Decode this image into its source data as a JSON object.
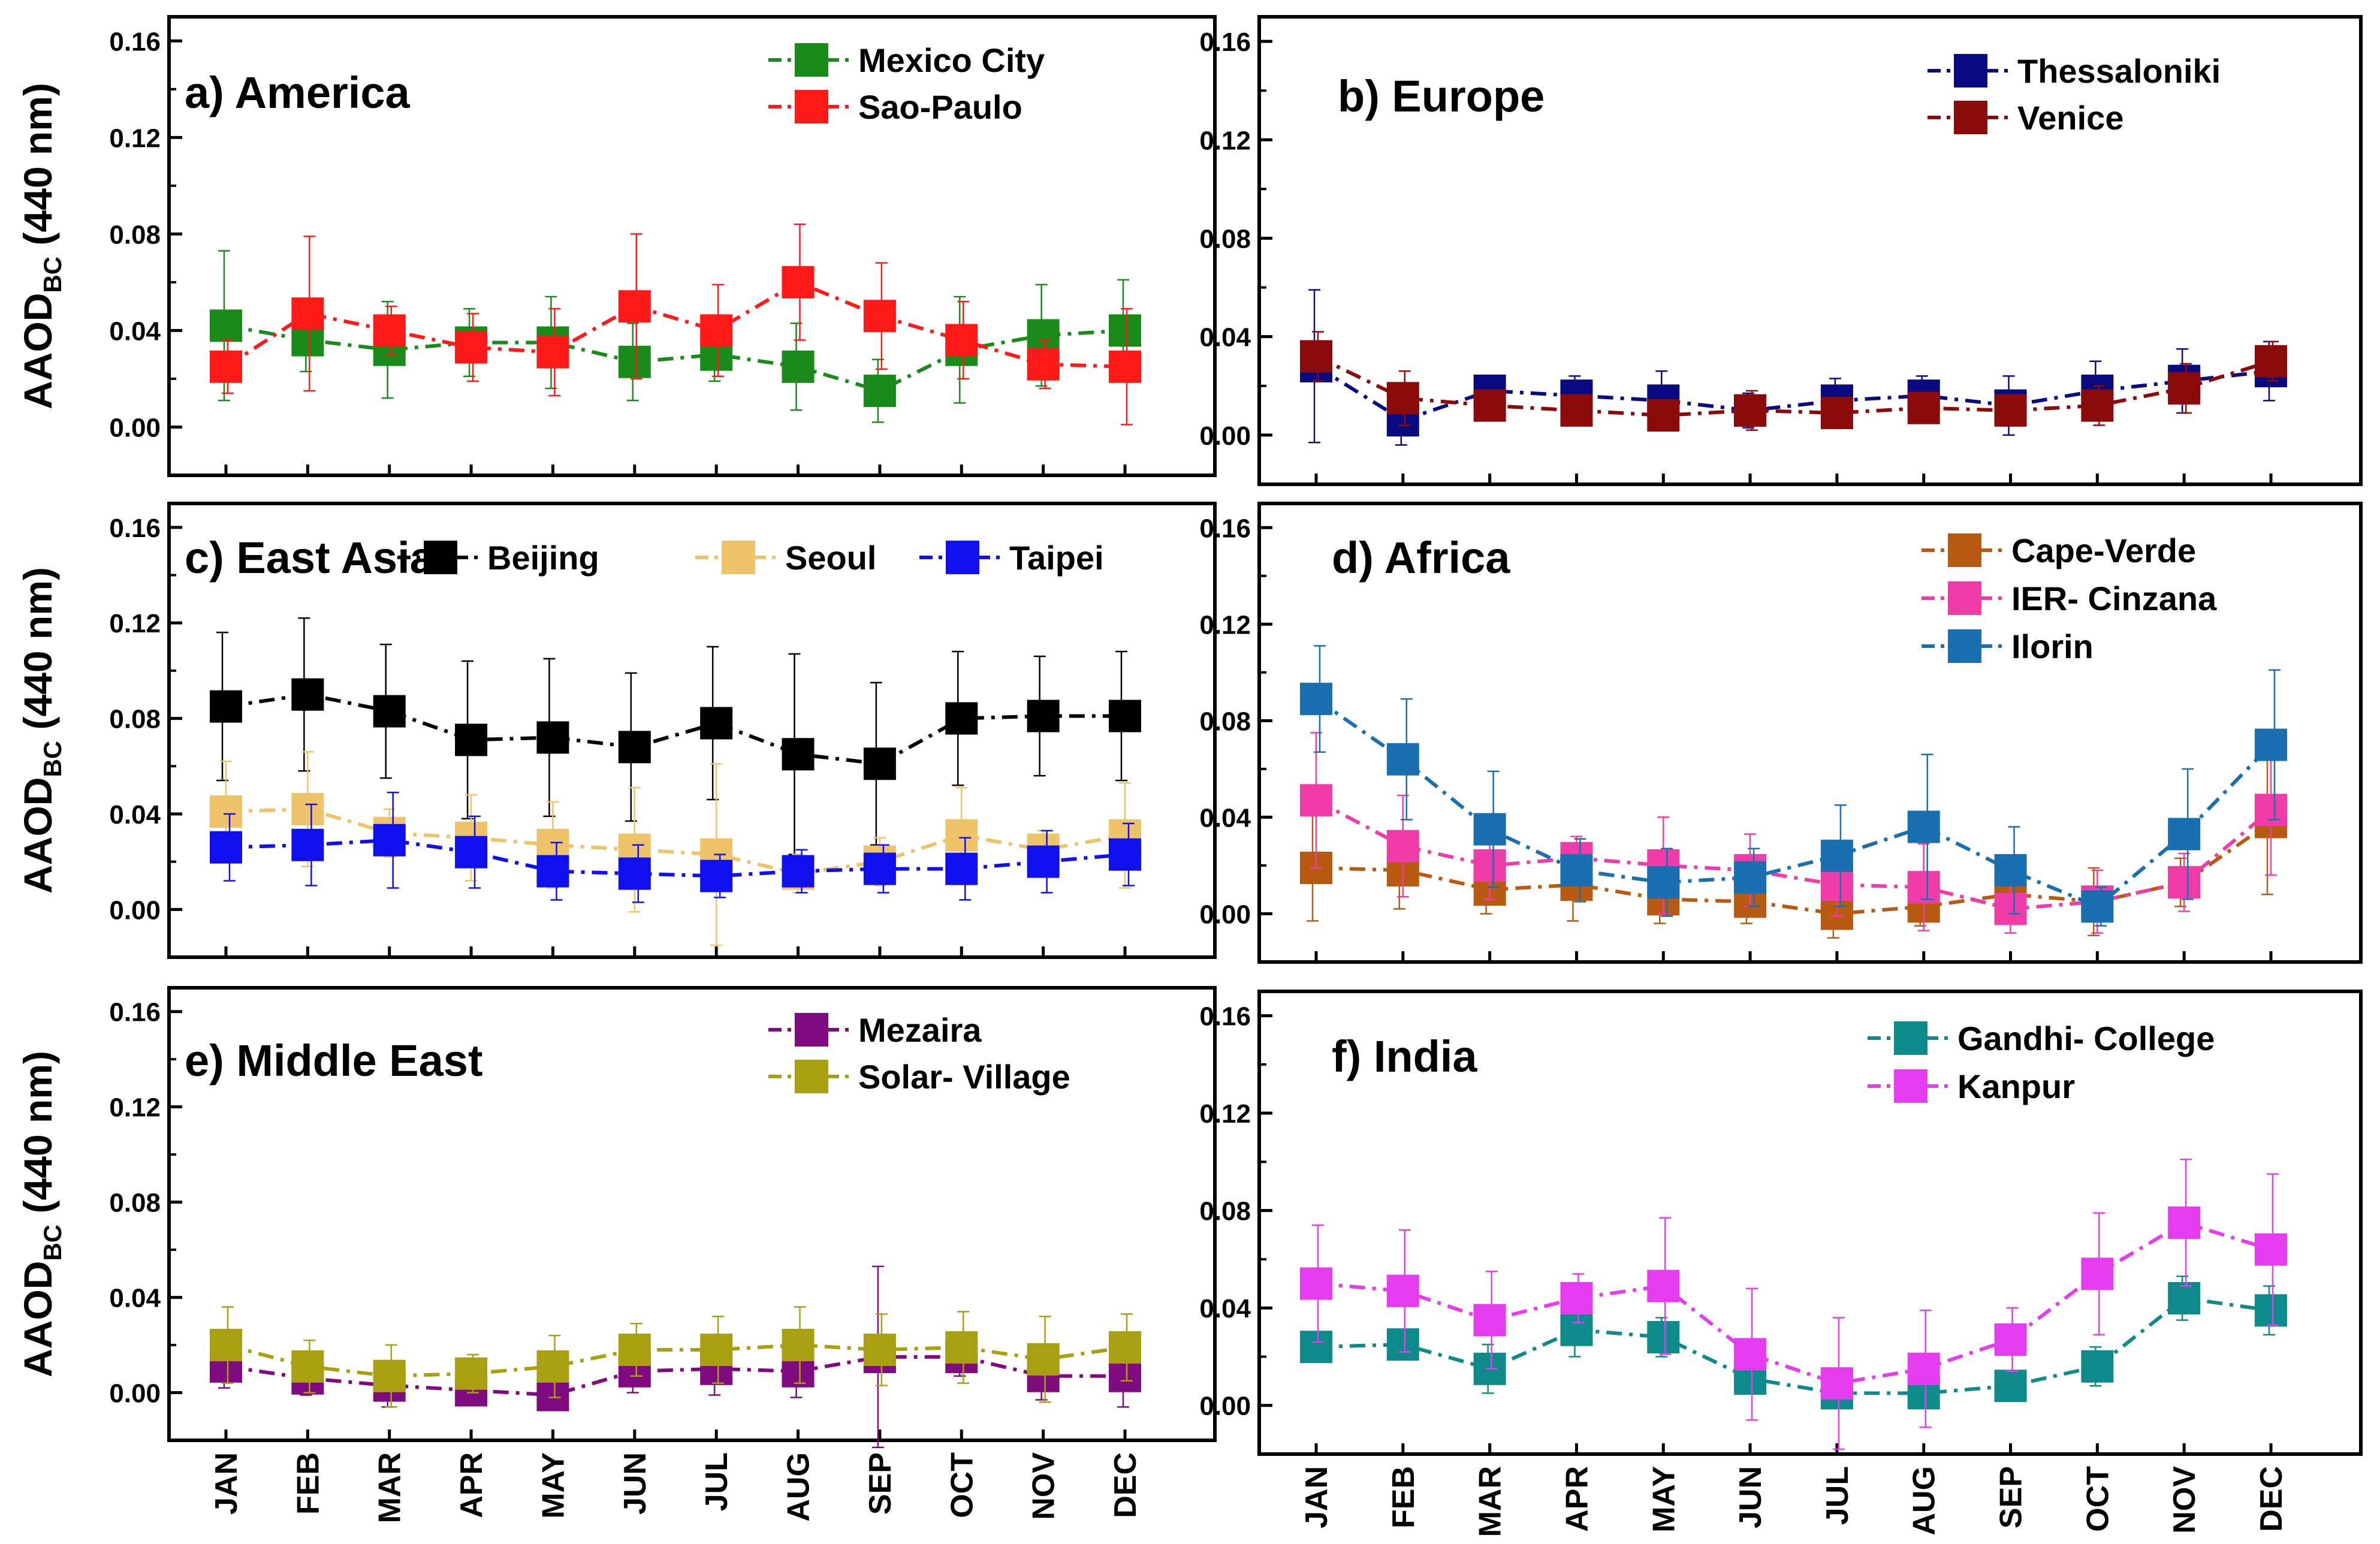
{
  "figure": {
    "ylabel": {
      "main": "AAOD",
      "sub": "BC",
      "rest": " (440 nm)"
    },
    "months": [
      "JAN",
      "FEB",
      "MAR",
      "APR",
      "MAY",
      "JUN",
      "JUL",
      "AUG",
      "SEP",
      "OCT",
      "NOV",
      "DEC"
    ],
    "yticks": [
      {
        "value": 0.0,
        "label": "0.00"
      },
      {
        "value": 0.04,
        "label": "0.04"
      },
      {
        "value": 0.08,
        "label": "0.08"
      },
      {
        "value": 0.12,
        "label": "0.12"
      },
      {
        "value": 0.16,
        "label": "0.16"
      }
    ]
  },
  "chart_data": [
    {
      "type": "line",
      "id": "america",
      "title": "a) America",
      "ylabel": "AAODBC (440 nm)",
      "ylim": [
        -0.02,
        0.17
      ],
      "legend_position": "top-right",
      "x": [
        "JAN",
        "FEB",
        "MAR",
        "APR",
        "MAY",
        "JUN",
        "JUL",
        "AUG",
        "SEP",
        "OCT",
        "NOV",
        "DEC"
      ],
      "series": [
        {
          "name": "Mexico City",
          "color": "#1a8a1a",
          "values": [
            0.042,
            0.036,
            0.032,
            0.035,
            0.035,
            0.027,
            0.03,
            0.025,
            0.015,
            0.032,
            0.038,
            0.04
          ],
          "err": [
            0.031,
            0.013,
            0.02,
            0.014,
            0.019,
            0.016,
            0.011,
            0.018,
            0.013,
            0.022,
            0.021,
            0.021
          ]
        },
        {
          "name": "Sao-Paulo",
          "color": "#ff1a1a",
          "values": [
            0.025,
            0.047,
            0.04,
            0.033,
            0.031,
            0.05,
            0.04,
            0.06,
            0.046,
            0.036,
            0.026,
            0.025
          ],
          "err": [
            0.011,
            0.032,
            0.01,
            0.014,
            0.018,
            0.03,
            0.019,
            0.024,
            0.022,
            0.016,
            0.01,
            0.024
          ]
        }
      ]
    },
    {
      "type": "line",
      "id": "europe",
      "title": "b) Europe",
      "ylabel": "",
      "ylim": [
        -0.02,
        0.17
      ],
      "legend_position": "top-right",
      "x": [
        "JAN",
        "FEB",
        "MAR",
        "APR",
        "MAY",
        "JUN",
        "JUL",
        "AUG",
        "SEP",
        "OCT",
        "NOV",
        "DEC"
      ],
      "series": [
        {
          "name": "Thessaloniki",
          "color": "#0a0a80",
          "values": [
            0.028,
            0.006,
            0.018,
            0.016,
            0.014,
            0.01,
            0.014,
            0.016,
            0.012,
            0.018,
            0.022,
            0.026
          ],
          "err": [
            0.031,
            0.01,
            0.005,
            0.008,
            0.012,
            0.007,
            0.009,
            0.008,
            0.012,
            0.012,
            0.013,
            0.012
          ]
        },
        {
          "name": "Venice",
          "color": "#8b0a0a",
          "values": [
            0.032,
            0.015,
            0.012,
            0.01,
            0.008,
            0.01,
            0.009,
            0.011,
            0.01,
            0.012,
            0.019,
            0.03
          ],
          "err": [
            0.01,
            0.011,
            0.006,
            0.005,
            0.006,
            0.008,
            0.005,
            0.006,
            0.006,
            0.008,
            0.01,
            0.008
          ]
        }
      ]
    },
    {
      "type": "line",
      "id": "east-asia",
      "title": "c) East Asia",
      "ylabel": "AAODBC (440 nm)",
      "ylim": [
        -0.02,
        0.17
      ],
      "legend_position": "top",
      "x": [
        "JAN",
        "FEB",
        "MAR",
        "APR",
        "MAY",
        "JUN",
        "JUL",
        "AUG",
        "SEP",
        "OCT",
        "NOV",
        "DEC"
      ],
      "series": [
        {
          "name": "Beijing",
          "color": "#000000",
          "values": [
            0.085,
            0.09,
            0.083,
            0.071,
            0.072,
            0.068,
            0.078,
            0.065,
            0.061,
            0.08,
            0.081,
            0.081
          ],
          "err": [
            0.031,
            0.032,
            0.028,
            0.033,
            0.033,
            0.031,
            0.032,
            0.042,
            0.034,
            0.028,
            0.025,
            0.027
          ]
        },
        {
          "name": "Seoul",
          "color": "#efc36a",
          "values": [
            0.041,
            0.042,
            0.032,
            0.03,
            0.027,
            0.025,
            0.023,
            0.015,
            0.02,
            0.031,
            0.025,
            0.031
          ],
          "err": [
            0.021,
            0.024,
            0.01,
            0.018,
            0.018,
            0.026,
            0.038,
            0.008,
            0.01,
            0.02,
            0.008,
            0.022
          ]
        },
        {
          "name": "Taipei",
          "color": "#1010ee",
          "values": [
            0.026,
            0.027,
            0.029,
            0.024,
            0.016,
            0.015,
            0.014,
            0.016,
            0.017,
            0.017,
            0.02,
            0.023
          ],
          "err": [
            0.014,
            0.017,
            0.02,
            0.015,
            0.012,
            0.012,
            0.009,
            0.009,
            0.01,
            0.013,
            0.013,
            0.013
          ]
        }
      ]
    },
    {
      "type": "line",
      "id": "africa",
      "title": "d) Africa",
      "ylabel": "",
      "ylim": [
        -0.02,
        0.17
      ],
      "legend_position": "top-right",
      "x": [
        "JAN",
        "FEB",
        "MAR",
        "APR",
        "MAY",
        "JUN",
        "JUL",
        "AUG",
        "SEP",
        "OCT",
        "NOV",
        "DEC"
      ],
      "series": [
        {
          "name": "Cape-Verde",
          "color": "#b85a12",
          "values": [
            0.019,
            0.018,
            0.01,
            0.012,
            0.006,
            0.005,
            0.0,
            0.003,
            0.008,
            0.005,
            0.013,
            0.038
          ],
          "err": [
            0.022,
            0.016,
            0.01,
            0.015,
            0.01,
            0.009,
            0.01,
            0.008,
            0.009,
            0.014,
            0.01,
            0.03
          ]
        },
        {
          "name": "IER- Cinzana",
          "color": "#f03ca8",
          "values": [
            0.047,
            0.028,
            0.02,
            0.023,
            0.02,
            0.018,
            0.012,
            0.011,
            0.002,
            0.005,
            0.013,
            0.043
          ],
          "err": [
            0.028,
            0.021,
            0.014,
            0.009,
            0.02,
            0.015,
            0.013,
            0.018,
            0.01,
            0.013,
            0.012,
            0.027
          ]
        },
        {
          "name": "Ilorin",
          "color": "#1a6fb0",
          "values": [
            0.089,
            0.064,
            0.035,
            0.018,
            0.013,
            0.015,
            0.024,
            0.036,
            0.018,
            0.003,
            0.033,
            0.07
          ],
          "err": [
            0.022,
            0.025,
            0.024,
            0.013,
            0.014,
            0.012,
            0.021,
            0.03,
            0.018,
            0.008,
            0.027,
            0.031
          ]
        }
      ]
    },
    {
      "type": "line",
      "id": "middle-east",
      "title": "e) Middle East",
      "ylabel": "AAODBC (440 nm)",
      "ylim": [
        -0.02,
        0.17
      ],
      "legend_position": "top-right",
      "x": [
        "JAN",
        "FEB",
        "MAR",
        "APR",
        "MAY",
        "JUN",
        "JUL",
        "AUG",
        "SEP",
        "OCT",
        "NOV",
        "DEC"
      ],
      "series": [
        {
          "name": "Mezaira",
          "color": "#800a80",
          "values": [
            0.011,
            0.006,
            0.003,
            0.001,
            -0.001,
            0.009,
            0.01,
            0.009,
            0.015,
            0.015,
            0.007,
            0.007
          ],
          "err": [
            0.009,
            0.007,
            0.009,
            0.005,
            0.006,
            0.009,
            0.011,
            0.011,
            0.038,
            0.008,
            0.01,
            0.013
          ]
        },
        {
          "name": "Solar- Village",
          "color": "#a8a010",
          "values": [
            0.02,
            0.011,
            0.007,
            0.008,
            0.011,
            0.018,
            0.018,
            0.02,
            0.018,
            0.019,
            0.014,
            0.019
          ],
          "err": [
            0.016,
            0.011,
            0.013,
            0.008,
            0.013,
            0.011,
            0.014,
            0.016,
            0.015,
            0.015,
            0.018,
            0.014
          ]
        }
      ]
    },
    {
      "type": "line",
      "id": "india",
      "title": "f) India",
      "ylabel": "",
      "ylim": [
        -0.02,
        0.17
      ],
      "legend_position": "top-right",
      "x": [
        "JAN",
        "FEB",
        "MAR",
        "APR",
        "MAY",
        "JUN",
        "JUL",
        "AUG",
        "SEP",
        "OCT",
        "NOV",
        "DEC"
      ],
      "series": [
        {
          "name": "Gandhi- College",
          "color": "#0f8a8a",
          "values": [
            0.024,
            0.025,
            0.015,
            0.031,
            0.028,
            0.011,
            0.005,
            0.005,
            0.008,
            0.016,
            0.044,
            0.039
          ],
          "err": [
            0.006,
            0.006,
            0.01,
            0.011,
            0.008,
            0.005,
            0.005,
            0.005,
            0.006,
            0.008,
            0.009,
            0.01
          ]
        },
        {
          "name": "Kanpur",
          "color": "#e63cf0",
          "values": [
            0.05,
            0.047,
            0.035,
            0.044,
            0.049,
            0.021,
            0.009,
            0.015,
            0.027,
            0.054,
            0.075,
            0.064
          ],
          "err": [
            0.024,
            0.025,
            0.02,
            0.01,
            0.028,
            0.027,
            0.027,
            0.024,
            0.013,
            0.025,
            0.026,
            0.031
          ]
        }
      ]
    }
  ]
}
